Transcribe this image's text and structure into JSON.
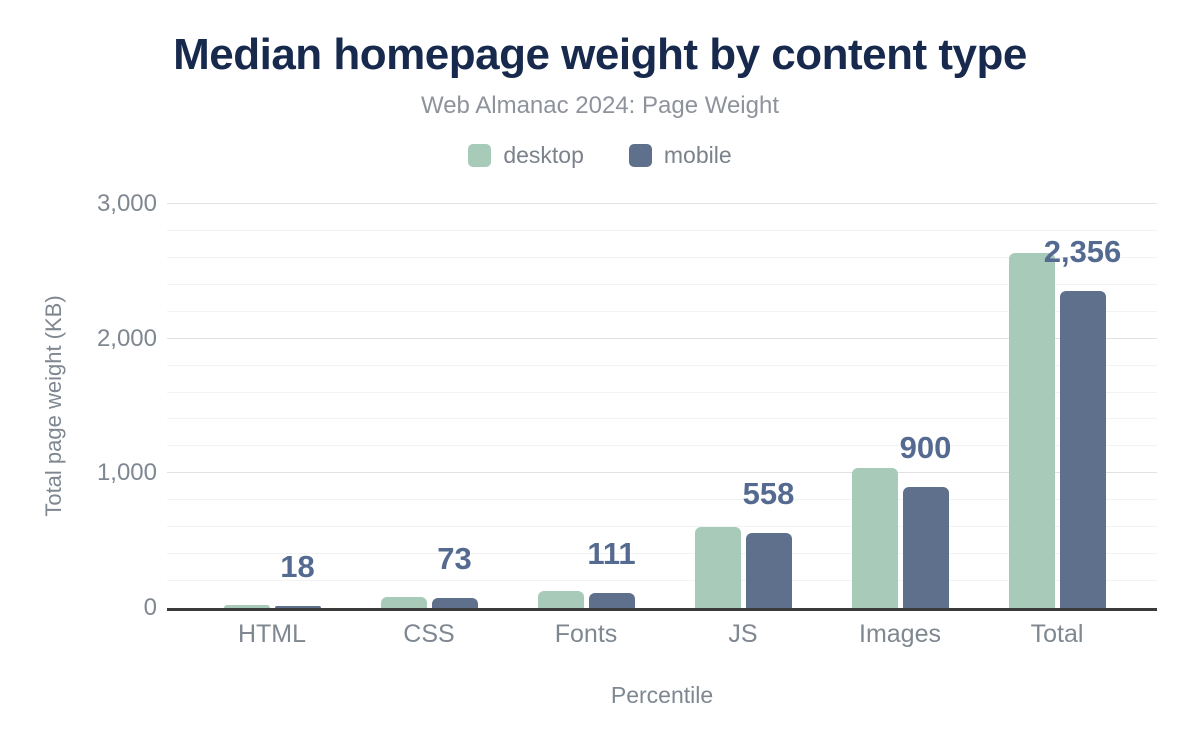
{
  "chart_data": {
    "type": "bar",
    "title": "Median homepage weight by content type",
    "subtitle": "Web Almanac 2024: Page Weight",
    "xlabel": "Percentile",
    "ylabel": "Total page weight (KB)",
    "categories": [
      "HTML",
      "CSS",
      "Fonts",
      "JS",
      "Images",
      "Total"
    ],
    "series": [
      {
        "name": "desktop",
        "color": "#a8cab8",
        "values": [
          21,
          85,
          130,
          605,
          1038,
          2635
        ]
      },
      {
        "name": "mobile",
        "color": "#5f708c",
        "values": [
          18,
          73,
          111,
          558,
          900,
          2356
        ]
      }
    ],
    "data_labels": {
      "series": "mobile",
      "labels": [
        "18",
        "73",
        "111",
        "558",
        "900",
        "2,356"
      ],
      "color": "#556a90"
    },
    "ylim": [
      0,
      3000
    ],
    "y_ticks": [
      {
        "value": 0,
        "label": "0"
      },
      {
        "value": 1000,
        "label": "1,000"
      },
      {
        "value": 2000,
        "label": "2,000"
      },
      {
        "value": 3000,
        "label": "3,000"
      }
    ],
    "grid": {
      "minor_step": 200,
      "major_step": 1000,
      "minor_color": "#f3f3f3",
      "major_color": "#e2e2e2",
      "axis_line_color": "#3a3a3a"
    },
    "legend_position": "top"
  },
  "style": {
    "title_color": "#172a4d",
    "subtitle_color": "#8e939b",
    "axis_text_color": "#7f8791",
    "legend_text_color": "#7b828c",
    "background": "#ffffff"
  }
}
